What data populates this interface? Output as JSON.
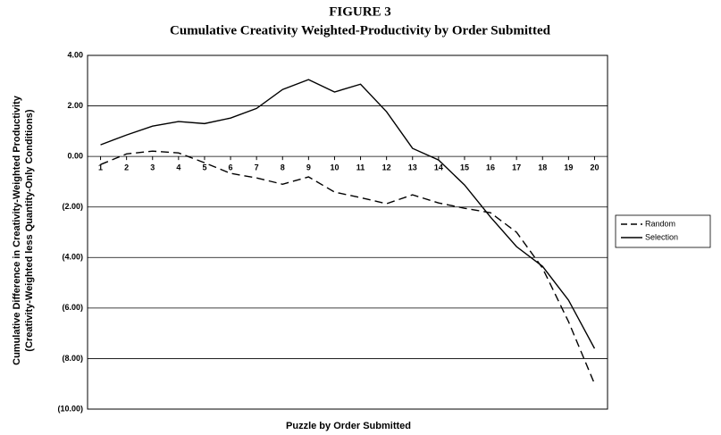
{
  "chart_data": {
    "type": "line",
    "title": "FIGURE 3",
    "subtitle": "Cumulative Creativity Weighted-Productivity by Order Submitted",
    "y_label": [
      "Cumulative Difference in Creativity-Weighted Productivity",
      "(Creativity-Weighted less Quantity-Only Conditions)"
    ],
    "x_label": "Puzzle by Order Submitted",
    "categories": [
      "1",
      "2",
      "3",
      "4",
      "5",
      "6",
      "7",
      "8",
      "9",
      "10",
      "11",
      "12",
      "13",
      "14",
      "15",
      "16",
      "17",
      "18",
      "19",
      "20"
    ],
    "series": [
      {
        "name": "Random",
        "color": "#000000",
        "style": "dashed",
        "values": [
          -0.32,
          0.1,
          0.21,
          0.14,
          -0.25,
          -0.67,
          -0.85,
          -1.1,
          -0.81,
          -1.41,
          -1.63,
          -1.87,
          -1.52,
          -1.84,
          -2.05,
          -2.23,
          -3.0,
          -4.42,
          -6.54,
          -9.0
        ]
      },
      {
        "name": "Selection",
        "color": "#000000",
        "style": "solid",
        "values": [
          0.46,
          0.85,
          1.2,
          1.38,
          1.3,
          1.52,
          1.9,
          2.65,
          3.04,
          2.55,
          2.86,
          1.77,
          0.32,
          -0.14,
          -1.13,
          -2.4,
          -3.57,
          -4.35,
          -5.69,
          -7.6
        ]
      }
    ],
    "ylim": [
      -10,
      4
    ],
    "yticks": [
      {
        "value": 4,
        "label": "4.00"
      },
      {
        "value": 2,
        "label": "2.00"
      },
      {
        "value": 0,
        "label": "0.00"
      },
      {
        "value": -2,
        "label": "(2.00)"
      },
      {
        "value": -4,
        "label": "(4.00)"
      },
      {
        "value": -6,
        "label": "(6.00)"
      },
      {
        "value": -8,
        "label": "(8.00)"
      },
      {
        "value": -10,
        "label": "(10.00)"
      }
    ],
    "grid": true,
    "legend": "right"
  }
}
